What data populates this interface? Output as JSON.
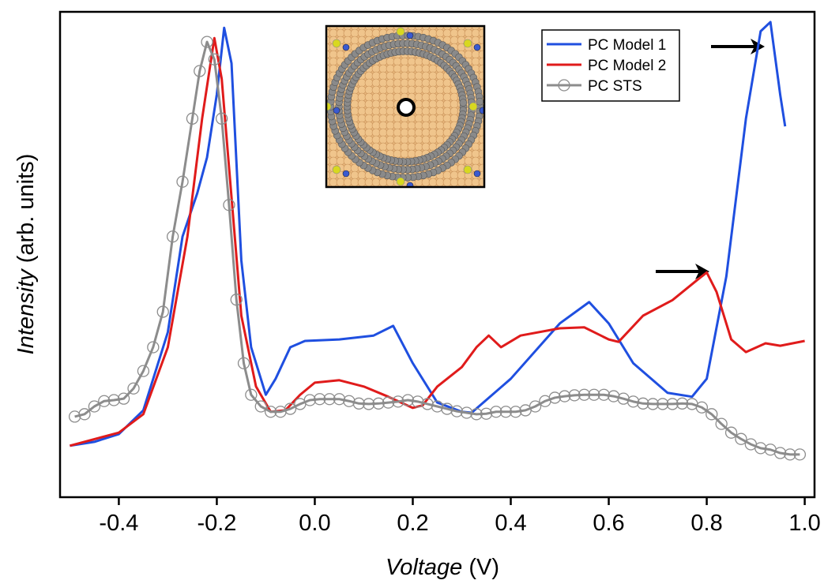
{
  "chart_data": {
    "type": "line",
    "x_label": [
      "Voltage",
      "(V)"
    ],
    "y_label": [
      "Intensity",
      "(arb. units)"
    ],
    "xlim": [
      -0.52,
      1.02
    ],
    "ylim": [
      0,
      100
    ],
    "xticks": [
      -0.4,
      -0.2,
      {
        "value": 0,
        "label": "0.0"
      },
      0.2,
      0.4,
      0.6,
      0.8,
      {
        "value": 1,
        "label": "1.0"
      }
    ],
    "legend": "upper right",
    "series": [
      {
        "name": "PC Model 1",
        "color": "#1f4fe0",
        "x": [
          -0.5,
          -0.45,
          -0.4,
          -0.35,
          -0.3,
          -0.27,
          -0.24,
          -0.22,
          -0.2,
          -0.185,
          -0.17,
          -0.15,
          -0.13,
          -0.1,
          -0.08,
          -0.05,
          -0.02,
          0.05,
          0.12,
          0.16,
          0.2,
          0.25,
          0.3,
          0.32,
          0.4,
          0.5,
          0.56,
          0.6,
          0.65,
          0.72,
          0.77,
          0.8,
          0.84,
          0.88,
          0.91,
          0.93,
          0.95,
          0.96
        ],
        "values": [
          10.6,
          11.4,
          13,
          17.9,
          34,
          53.7,
          62.6,
          70,
          83,
          96.7,
          89.4,
          48.8,
          30.9,
          21.1,
          24.4,
          30.9,
          32.2,
          32.5,
          33.3,
          35.3,
          27.6,
          19.5,
          17.6,
          17.4,
          24.4,
          35.8,
          40.2,
          35.8,
          27.6,
          21.5,
          20.7,
          24.4,
          45.5,
          78,
          96,
          97.9,
          82.9,
          76.4
        ]
      },
      {
        "name": "PC Model 2",
        "color": "#e01b1b",
        "x": [
          -0.5,
          -0.4,
          -0.35,
          -0.3,
          -0.26,
          -0.23,
          -0.205,
          -0.19,
          -0.17,
          -0.15,
          -0.12,
          -0.09,
          -0.06,
          -0.03,
          0,
          0.05,
          0.1,
          0.15,
          0.2,
          0.22,
          0.25,
          0.3,
          0.33,
          0.355,
          0.38,
          0.42,
          0.5,
          0.55,
          0.6,
          0.62,
          0.67,
          0.73,
          0.78,
          0.8,
          0.82,
          0.85,
          0.88,
          0.92,
          0.95,
          1.0
        ],
        "values": [
          10.6,
          13.3,
          17.1,
          30.9,
          53.7,
          78,
          94.6,
          86.2,
          61.8,
          37.4,
          22.8,
          17.6,
          17.9,
          21.1,
          23.6,
          24.1,
          22.8,
          20.7,
          18.4,
          18.9,
          22.8,
          26.8,
          30.9,
          33.3,
          30.9,
          33.3,
          34.8,
          35,
          32.5,
          32,
          37.4,
          40.6,
          44.7,
          46.3,
          42.3,
          32.5,
          29.9,
          31.7,
          31.2,
          32.2
        ]
      },
      {
        "name": "PC STS",
        "color": "#8c8c8c",
        "marker": "o",
        "x": [
          -0.49,
          -0.47,
          -0.45,
          -0.43,
          -0.41,
          -0.39,
          -0.37,
          -0.35,
          -0.33,
          -0.31,
          -0.29,
          -0.27,
          -0.25,
          -0.235,
          -0.22,
          -0.205,
          -0.19,
          -0.175,
          -0.16,
          -0.145,
          -0.13,
          -0.11,
          -0.09,
          -0.07,
          -0.05,
          -0.03,
          -0.01,
          0.01,
          0.03,
          0.05,
          0.07,
          0.09,
          0.11,
          0.13,
          0.15,
          0.17,
          0.19,
          0.21,
          0.23,
          0.25,
          0.27,
          0.29,
          0.31,
          0.33,
          0.35,
          0.37,
          0.39,
          0.41,
          0.43,
          0.45,
          0.47,
          0.49,
          0.51,
          0.53,
          0.55,
          0.57,
          0.59,
          0.61,
          0.63,
          0.65,
          0.67,
          0.69,
          0.71,
          0.73,
          0.75,
          0.77,
          0.79,
          0.81,
          0.83,
          0.85,
          0.87,
          0.89,
          0.91,
          0.93,
          0.95,
          0.97,
          0.99
        ],
        "values": [
          16.6,
          17.1,
          18.7,
          19.8,
          20,
          20.3,
          22.4,
          26,
          30.9,
          38.2,
          53.7,
          65,
          78,
          87.8,
          93.8,
          90.2,
          78,
          60.2,
          40.7,
          27.6,
          21.1,
          18.7,
          17.6,
          17.6,
          18.2,
          19.2,
          20,
          20.2,
          20.2,
          20.2,
          19.8,
          19.3,
          19.2,
          19.3,
          19.5,
          19.7,
          20,
          19.7,
          19.2,
          18.7,
          18.2,
          17.7,
          17.4,
          17.1,
          17.2,
          17.6,
          17.6,
          17.6,
          17.9,
          18.7,
          19.8,
          20.5,
          20.8,
          21,
          21.1,
          21.1,
          21.1,
          20.8,
          20.3,
          19.7,
          19.3,
          19.2,
          19.2,
          19.2,
          19.3,
          19.2,
          18.5,
          17.1,
          15.1,
          13.3,
          12,
          10.9,
          10.1,
          9.8,
          9.1,
          8.8,
          8.8
        ]
      }
    ]
  }
}
